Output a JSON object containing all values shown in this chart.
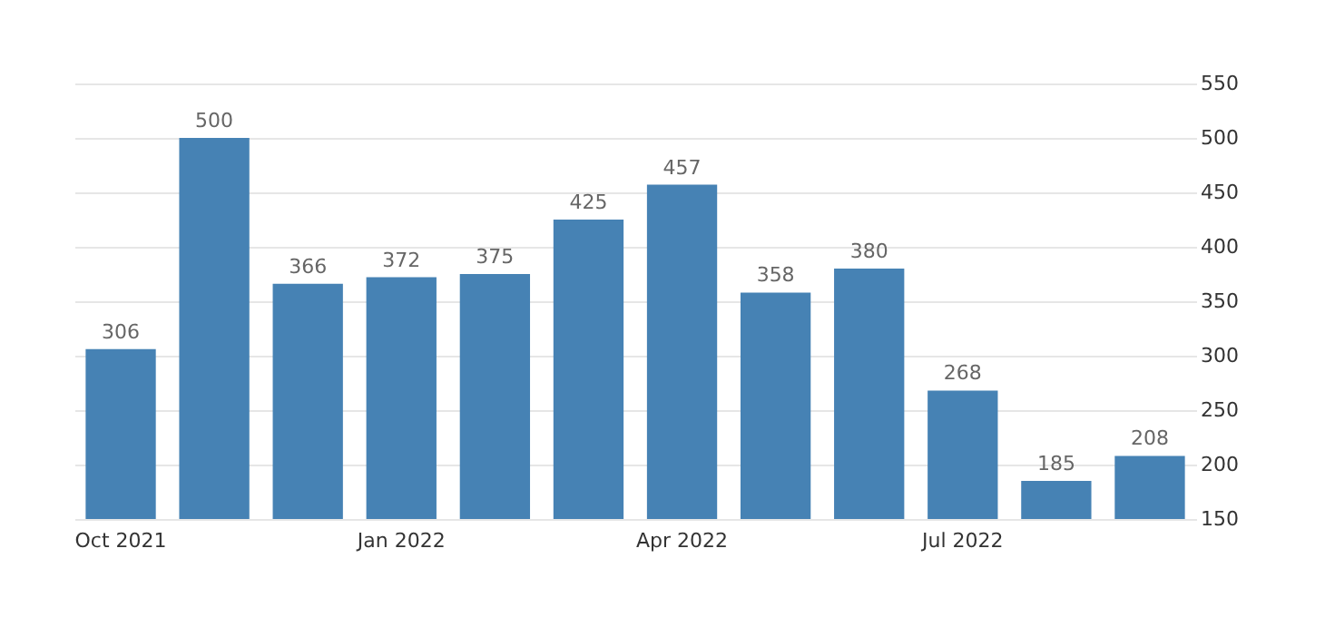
{
  "chart_data": {
    "type": "bar",
    "categories": [
      "Oct 2021",
      null,
      null,
      "Jan 2022",
      null,
      null,
      "Apr 2022",
      null,
      null,
      "Jul 2022",
      null,
      null
    ],
    "values": [
      306,
      500,
      366,
      372,
      375,
      425,
      457,
      358,
      380,
      268,
      185,
      208
    ],
    "color": "#4682b4",
    "ylim": [
      150,
      550
    ],
    "yticks": [
      150,
      200,
      250,
      300,
      350,
      400,
      450,
      500,
      550
    ],
    "grid": "y",
    "data_labels": true
  }
}
